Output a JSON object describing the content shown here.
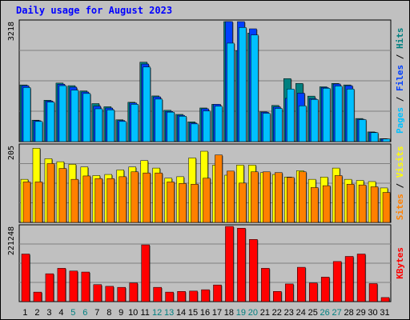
{
  "title": "Daily usage for August 2023",
  "colors": {
    "background": "#c0c0c0",
    "pages": "#00c0ff",
    "files": "#0040ff",
    "hits": "#008080",
    "visits": "#ffff00",
    "sites": "#ff8000",
    "kbytes": "#ff0000",
    "weekend_label": "#008080",
    "weekday_label": "#000000"
  },
  "chart_data": [
    {
      "type": "bar",
      "panel": "top",
      "ymax_label": "3218",
      "ylim": [
        0,
        3218
      ],
      "legend": [
        "Pages",
        "/",
        "Files",
        "/",
        "Hits"
      ],
      "categories": [
        "1",
        "2",
        "3",
        "4",
        "5",
        "6",
        "7",
        "8",
        "9",
        "10",
        "11",
        "12",
        "13",
        "14",
        "15",
        "16",
        "17",
        "18",
        "19",
        "20",
        "21",
        "22",
        "23",
        "24",
        "25",
        "26",
        "27",
        "28",
        "29",
        "30",
        "31"
      ],
      "weekend": [
        5,
        6,
        12,
        13,
        19,
        20,
        26,
        27
      ],
      "series": [
        {
          "name": "Hits",
          "values": [
            1520,
            575,
            1110,
            1570,
            1500,
            1360,
            1020,
            935,
            585,
            1055,
            2130,
            1225,
            840,
            730,
            530,
            902,
            1000,
            3218,
            2440,
            2910,
            800,
            970,
            1690,
            1560,
            1220,
            1470,
            1560,
            1520,
            620,
            260,
            80
          ]
        },
        {
          "name": "Files",
          "values": [
            1500,
            560,
            1090,
            1540,
            1460,
            1330,
            950,
            900,
            565,
            1035,
            2080,
            1200,
            810,
            705,
            500,
            880,
            1000,
            3218,
            3218,
            3025,
            790,
            930,
            1160,
            1300,
            1150,
            1450,
            1545,
            1500,
            600,
            250,
            75
          ]
        },
        {
          "name": "Pages",
          "values": [
            1450,
            540,
            1060,
            1500,
            1380,
            1290,
            880,
            850,
            540,
            1000,
            2000,
            1140,
            790,
            680,
            475,
            820,
            950,
            2640,
            3060,
            2860,
            760,
            890,
            1410,
            960,
            1130,
            1430,
            1490,
            1410,
            590,
            240,
            70
          ]
        }
      ]
    },
    {
      "type": "bar",
      "panel": "middle",
      "ymax_label": "205",
      "ylim": [
        0,
        205
      ],
      "legend": [
        "Sites",
        "/",
        "Visits"
      ],
      "categories": [
        "1",
        "2",
        "3",
        "4",
        "5",
        "6",
        "7",
        "8",
        "9",
        "10",
        "11",
        "12",
        "13",
        "14",
        "15",
        "16",
        "17",
        "18",
        "19",
        "20",
        "21",
        "22",
        "23",
        "24",
        "25",
        "26",
        "27",
        "28",
        "29",
        "30",
        "31"
      ],
      "series": [
        {
          "name": "Visits",
          "values": [
            115,
            198,
            170,
            162,
            155,
            148,
            125,
            128,
            140,
            148,
            165,
            145,
            118,
            122,
            172,
            190,
            153,
            126,
            153,
            153,
            133,
            128,
            121,
            138,
            115,
            121,
            145,
            115,
            112,
            109,
            92
          ]
        },
        {
          "name": "Sites",
          "values": [
            108,
            108,
            157,
            144,
            115,
            124,
            117,
            117,
            122,
            135,
            132,
            132,
            108,
            104,
            102,
            118,
            180,
            137,
            105,
            135,
            135,
            133,
            120,
            135,
            93,
            98,
            125,
            102,
            100,
            95,
            80
          ]
        }
      ]
    },
    {
      "type": "bar",
      "panel": "bottom",
      "ymax_label": "221248",
      "ylim": [
        0,
        221248
      ],
      "legend": [
        "KBytes"
      ],
      "categories": [
        "1",
        "2",
        "3",
        "4",
        "5",
        "6",
        "7",
        "8",
        "9",
        "10",
        "11",
        "12",
        "13",
        "14",
        "15",
        "16",
        "17",
        "18",
        "19",
        "20",
        "21",
        "22",
        "23",
        "24",
        "25",
        "26",
        "27",
        "28",
        "29",
        "30",
        "31"
      ],
      "series": [
        {
          "name": "KBytes",
          "values": [
            140000,
            28000,
            82000,
            98000,
            90000,
            87000,
            50000,
            45000,
            42000,
            55000,
            167000,
            42000,
            28000,
            30000,
            31000,
            35000,
            49000,
            221248,
            216000,
            183000,
            98000,
            30000,
            52000,
            101000,
            55000,
            72000,
            118000,
            133000,
            140000,
            53000,
            12000
          ]
        }
      ]
    }
  ]
}
